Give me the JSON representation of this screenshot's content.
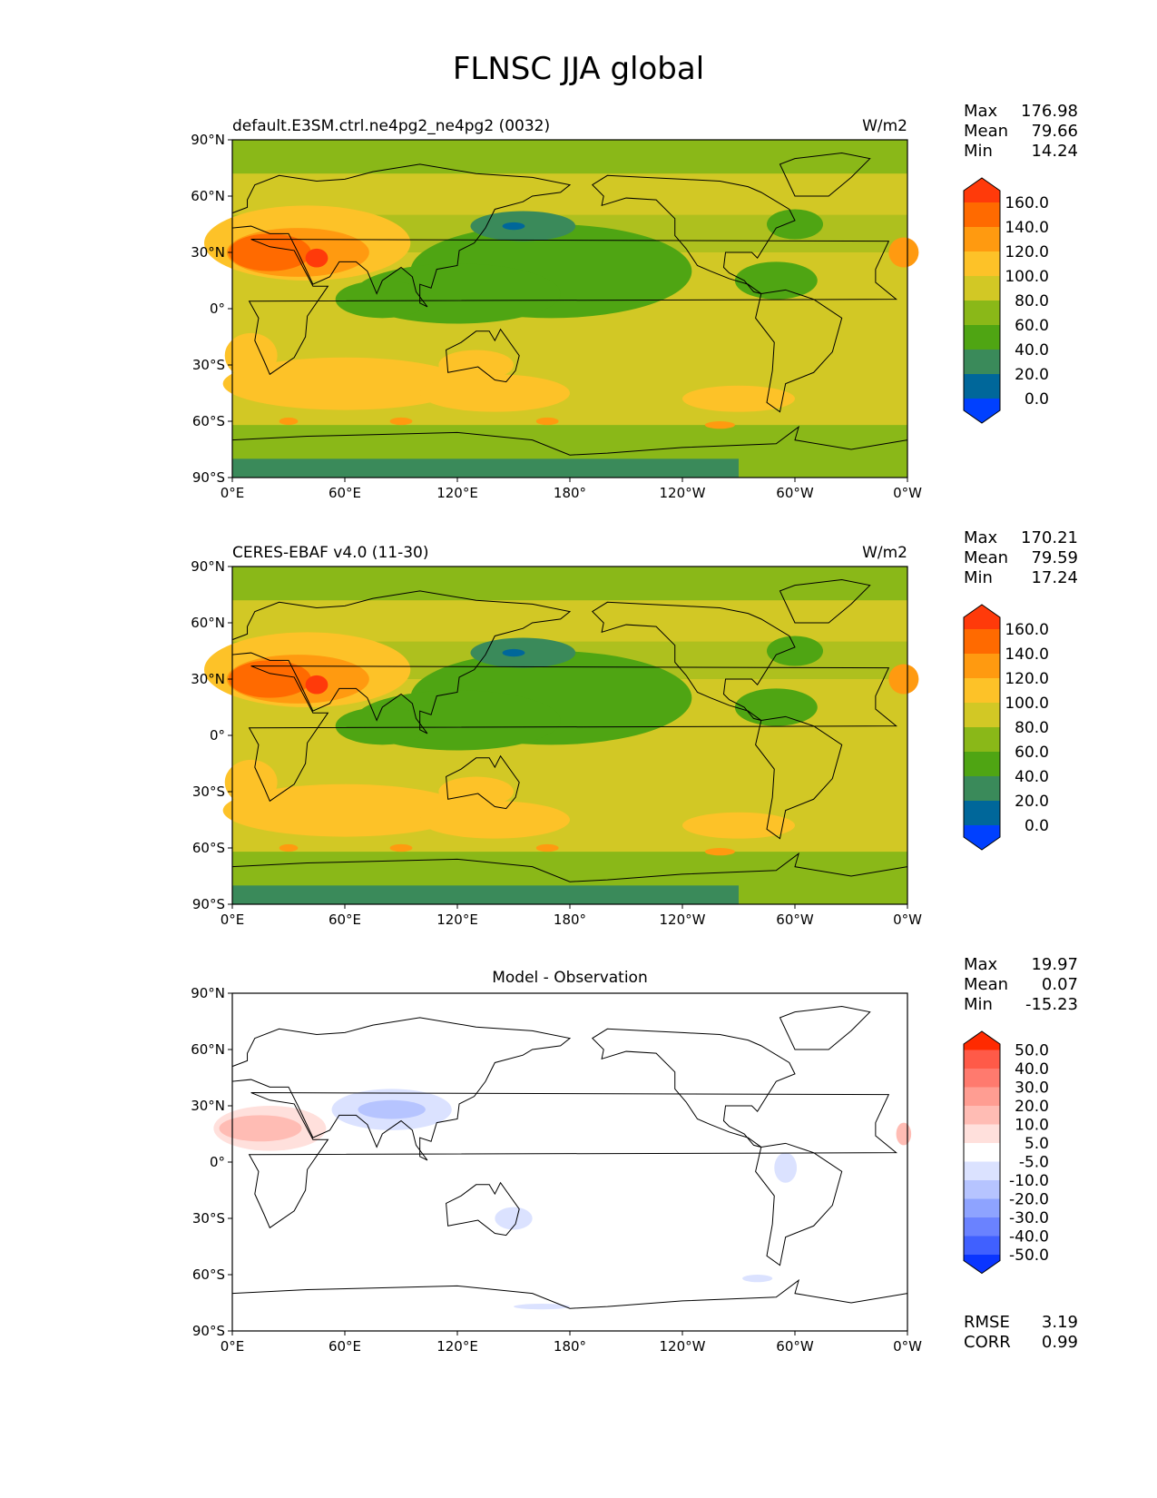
{
  "figure": {
    "title": "FLNSC JJA global"
  },
  "axes": {
    "lat_ticks": [
      "90°N",
      "60°N",
      "30°N",
      "0°",
      "30°S",
      "60°S",
      "90°S"
    ],
    "lon_ticks": [
      "0°E",
      "60°E",
      "120°E",
      "180°",
      "120°W",
      "60°W",
      "0°W"
    ]
  },
  "chart_data": [
    {
      "type": "heatmap",
      "panel": "test",
      "title_left": "default.E3SM.ctrl.ne4pg2_ne4pg2 (0032)",
      "title_right": "W/m2",
      "stats": {
        "Max": "176.98",
        "Mean": "79.66",
        "Min": "14.24"
      },
      "colorbar_levels": [
        "160.0",
        "140.0",
        "120.0",
        "100.0",
        "80.0",
        "60.0",
        "40.0",
        "20.0",
        "0.0"
      ],
      "colorbar_colors": [
        "#ff3a0a",
        "#ff6a00",
        "#ff9a10",
        "#fdc228",
        "#d2c825",
        "#8ab818",
        "#4fa513",
        "#3a8a5a",
        "#00679a",
        "#0040ff"
      ]
    },
    {
      "type": "heatmap",
      "panel": "reference",
      "title_left": "CERES-EBAF v4.0 (11-30)",
      "title_right": "W/m2",
      "stats": {
        "Max": "170.21",
        "Mean": "79.59",
        "Min": "17.24"
      },
      "colorbar_levels": [
        "160.0",
        "140.0",
        "120.0",
        "100.0",
        "80.0",
        "60.0",
        "40.0",
        "20.0",
        "0.0"
      ],
      "colorbar_colors": [
        "#ff3a0a",
        "#ff6a00",
        "#ff9a10",
        "#fdc228",
        "#d2c825",
        "#8ab818",
        "#4fa513",
        "#3a8a5a",
        "#00679a",
        "#0040ff"
      ]
    },
    {
      "type": "heatmap",
      "panel": "difference",
      "title_center": "Model - Observation",
      "stats": {
        "Max": "19.97",
        "Mean": "0.07",
        "Min": "-15.23"
      },
      "colorbar_levels": [
        "50.0",
        "40.0",
        "30.0",
        "20.0",
        "10.0",
        "5.0",
        "-5.0",
        "-10.0",
        "-20.0",
        "-30.0",
        "-40.0",
        "-50.0"
      ],
      "colorbar_colors": [
        "#ff2a00",
        "#ff5a48",
        "#ff7a6e",
        "#ff9d92",
        "#ffbcb4",
        "#ffe0dc",
        "#ffffff",
        "#dbe2ff",
        "#b6c4ff",
        "#8ea3ff",
        "#6a82ff",
        "#4060ff",
        "#0a35ff"
      ],
      "metrics": {
        "RMSE": "3.19",
        "CORR": "0.99"
      }
    }
  ]
}
